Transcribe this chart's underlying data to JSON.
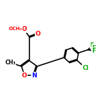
{
  "background_color": "#ffffff",
  "bond_color": "#000000",
  "bond_width": 1.2,
  "heteroatom_colors": {
    "N": "#0000ff",
    "O": "#ff0000",
    "F": "#00aa00",
    "Cl": "#00aa00"
  },
  "figsize": [
    1.52,
    1.52
  ],
  "dpi": 100
}
